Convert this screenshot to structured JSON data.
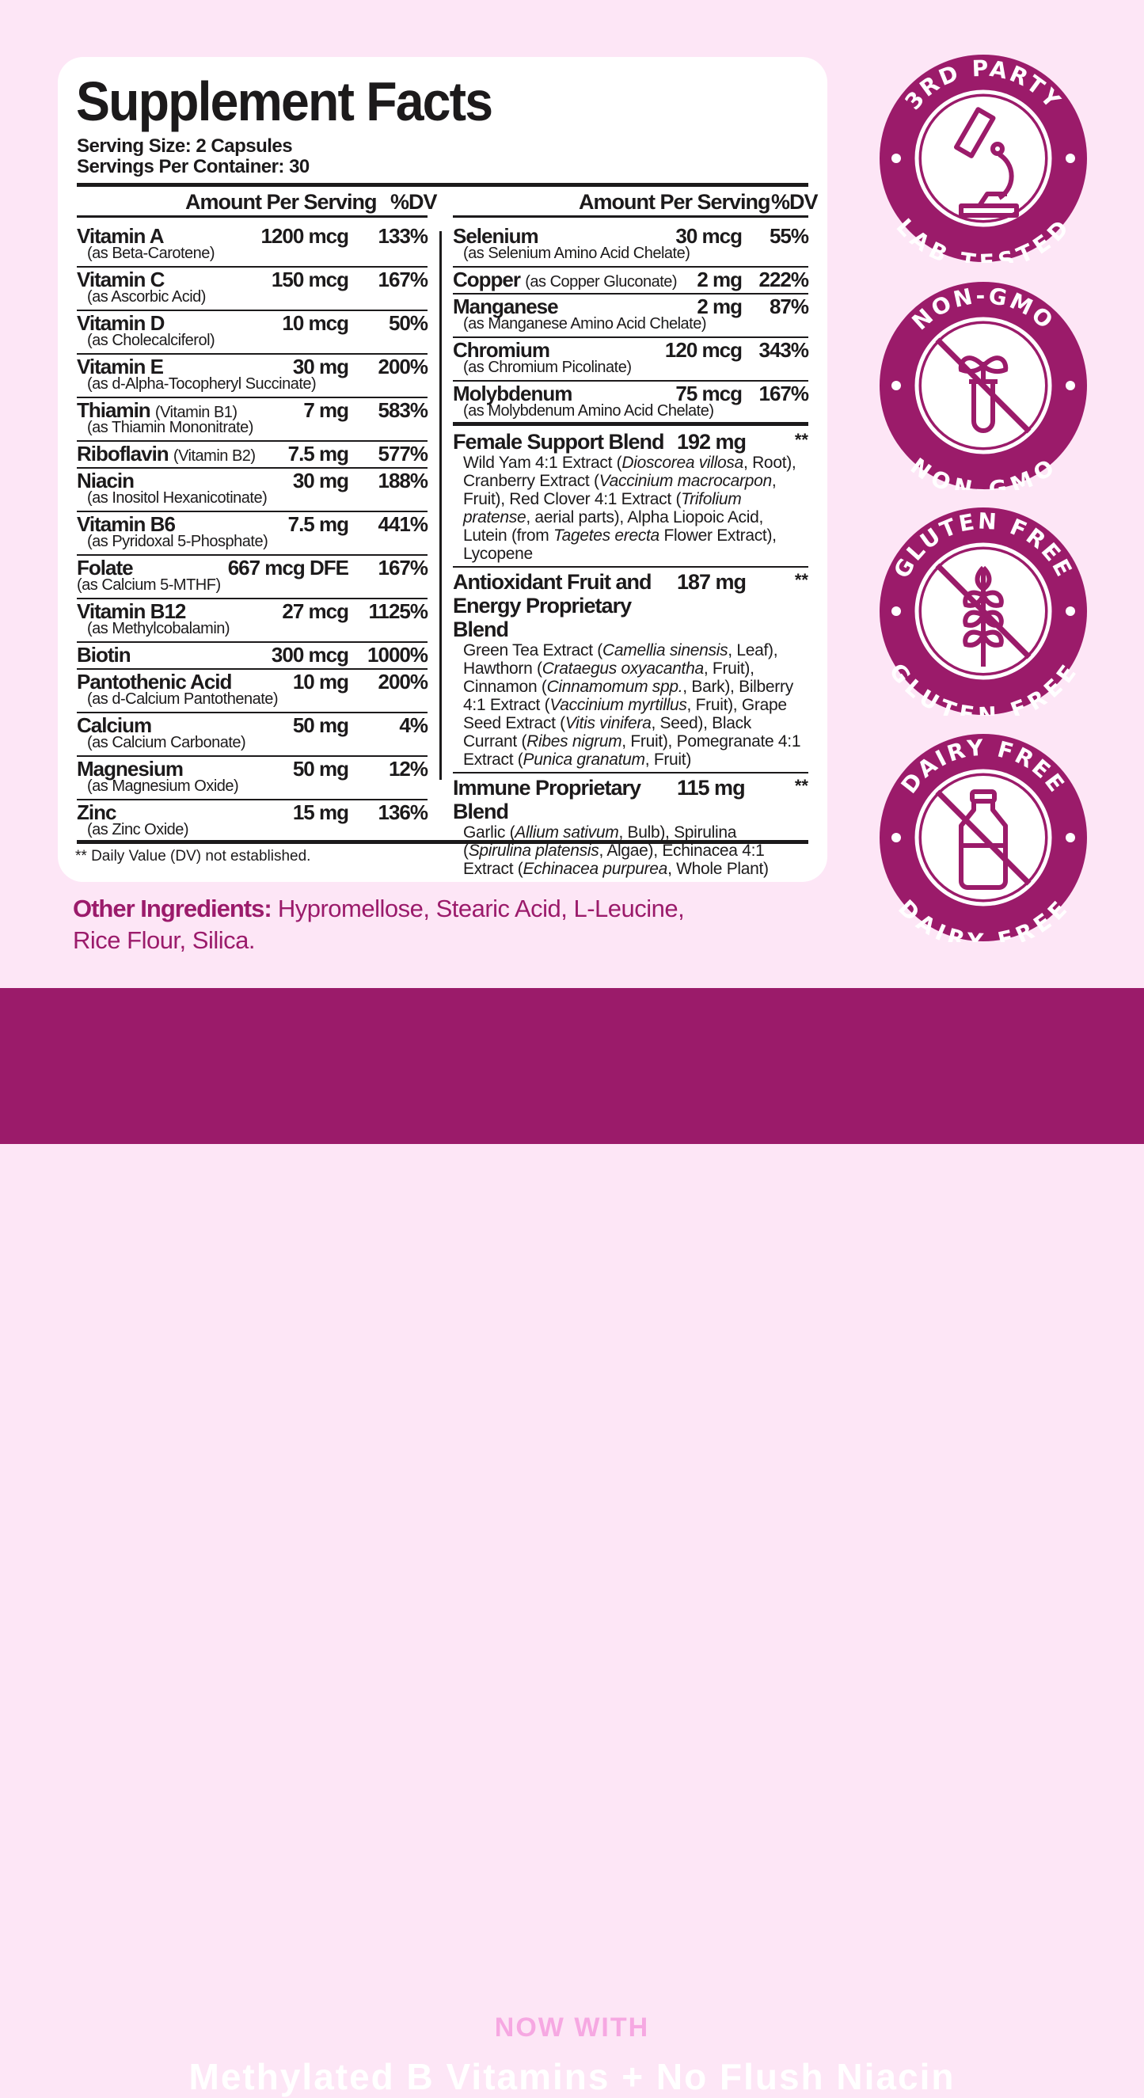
{
  "title": "Supplement Facts",
  "serving_size": "Serving Size: 2 Capsules",
  "servings_per_container": "Servings Per Container: 30",
  "col_amount": "Amount Per Serving",
  "col_dv": "%DV",
  "left_rows": [
    {
      "name": "Vitamin A",
      "sub": "(as Beta-Carotene)",
      "amount": "1200 mcg",
      "dv": "133%"
    },
    {
      "name": "Vitamin C",
      "sub": "(as Ascorbic Acid)",
      "amount": "150 mcg",
      "dv": "167%"
    },
    {
      "name": "Vitamin D",
      "sub": "(as Cholecalciferol)",
      "amount": "10 mcg",
      "dv": "50%"
    },
    {
      "name": "Vitamin E",
      "sub": "(as d-Alpha-Tocopheryl Succinate)",
      "amount": "30 mg",
      "dv": "200%"
    },
    {
      "name": "Thiamin",
      "inline": "(Vitamin B1)",
      "sub": "(as Thiamin Mononitrate)",
      "amount": "7 mg",
      "dv": "583%"
    },
    {
      "name": "Riboflavin",
      "inline": "(Vitamin B2)",
      "amount": "7.5 mg",
      "dv": "577%"
    },
    {
      "name": "Niacin",
      "sub": "(as Inositol Hexanicotinate)",
      "amount": "30 mg",
      "dv": "188%"
    },
    {
      "name": "Vitamin B6",
      "sub": "(as Pyridoxal 5-Phosphate)",
      "amount": "7.5 mg",
      "dv": "441%"
    },
    {
      "name": "Folate",
      "sub": "(as Calcium 5-MTHF)",
      "amount": "667 mcg DFE",
      "dv": "167%"
    },
    {
      "name": "Vitamin B12",
      "sub": "(as Methylcobalamin)",
      "amount": "27 mcg",
      "dv": "1125%"
    },
    {
      "name": "Biotin",
      "amount": "300 mcg",
      "dv": "1000%"
    },
    {
      "name": "Pantothenic Acid",
      "sub": "(as d-Calcium Pantothenate)",
      "amount": "10 mg",
      "dv": "200%"
    },
    {
      "name": "Calcium",
      "sub": "(as Calcium Carbonate)",
      "amount": "50 mg",
      "dv": "4%"
    },
    {
      "name": "Magnesium",
      "sub": "(as Magnesium Oxide)",
      "amount": "50 mg",
      "dv": "12%"
    },
    {
      "name": "Zinc",
      "sub": "(as Zinc Oxide)",
      "amount": "15 mg",
      "dv": "136%"
    }
  ],
  "right_rows": [
    {
      "name": "Selenium",
      "sub": "(as Selenium Amino Acid Chelate)",
      "amount": "30 mcg",
      "dv": "55%"
    },
    {
      "name": "Copper",
      "inline": "(as Copper Gluconate)",
      "amount": "2 mg",
      "dv": "222%"
    },
    {
      "name": "Manganese",
      "sub": "(as Manganese Amino Acid Chelate)",
      "amount": "2 mg",
      "dv": "87%"
    },
    {
      "name": "Chromium",
      "sub": "(as Chromium Picolinate)",
      "amount": "120 mcg",
      "dv": "343%"
    },
    {
      "name": "Molybdenum",
      "sub": "(as Molybdenum Amino Acid Chelate)",
      "amount": "75 mcg",
      "dv": "167%"
    }
  ],
  "blends": [
    {
      "name": "Female Support Blend",
      "amount": "192 mg",
      "dv": "**",
      "desc": [
        {
          "t": "Wild Yam 4:1 Extract ("
        },
        {
          "t": "Dioscorea villosa",
          "i": true
        },
        {
          "t": ", Root), Cranberry Extract ("
        },
        {
          "t": "Vaccinium macrocarpon",
          "i": true
        },
        {
          "t": ", Fruit), Red Clover 4:1 Extract ("
        },
        {
          "t": "Trifolium pratense",
          "i": true
        },
        {
          "t": ", aerial parts), Alpha Liopoic Acid, Lutein (from "
        },
        {
          "t": "Tagetes erecta",
          "i": true
        },
        {
          "t": " Flower Extract), Lycopene"
        }
      ]
    },
    {
      "name": "Antioxidant Fruit and Energy Proprietary Blend",
      "amount": "187 mg",
      "dv": "**",
      "desc": [
        {
          "t": "Green Tea Extract ("
        },
        {
          "t": "Camellia sinensis",
          "i": true
        },
        {
          "t": ", Leaf), Hawthorn ("
        },
        {
          "t": "Crataegus oxyacantha",
          "i": true
        },
        {
          "t": ", Fruit), Cinnamon ("
        },
        {
          "t": "Cinnamomum spp.",
          "i": true
        },
        {
          "t": ", Bark), Bilberry 4:1 Extract ("
        },
        {
          "t": "Vaccinium myrtillus",
          "i": true
        },
        {
          "t": ", Fruit), Grape Seed Extract ("
        },
        {
          "t": "Vitis vinifera",
          "i": true
        },
        {
          "t": ", Seed), Black Currant ("
        },
        {
          "t": "Ribes nigrum",
          "i": true
        },
        {
          "t": ", Fruit), Pomegranate 4:1 Extract ("
        },
        {
          "t": "Punica granatum",
          "i": true
        },
        {
          "t": ", Fruit)"
        }
      ]
    },
    {
      "name": "Immune Proprietary Blend",
      "amount": "115 mg",
      "dv": "**",
      "desc": [
        {
          "t": "Garlic ("
        },
        {
          "t": "Allium sativum",
          "i": true
        },
        {
          "t": ", Bulb), Spirulina ("
        },
        {
          "t": "Spirulina platensis",
          "i": true
        },
        {
          "t": ", Algae), Echinacea 4:1 Extract ("
        },
        {
          "t": "Echinacea purpurea",
          "i": true
        },
        {
          "t": ", Whole Plant)"
        }
      ]
    }
  ],
  "footnote": "** Daily Value (DV) not established.",
  "other_label": "Other Ingredients:",
  "other_text": "Hypromellose, Stearic Acid, L-Leucine, Rice Flour, Silica.",
  "badges": [
    {
      "top": "3RD PARTY",
      "bottom": "LAB TESTED",
      "icon": "microscope-icon"
    },
    {
      "top": "NON-GMO",
      "bottom": "NON-GMO",
      "icon": "no-gmo-plant-icon"
    },
    {
      "top": "GLUTEN FREE",
      "bottom": "GLUTEN FREE",
      "icon": "no-wheat-icon"
    },
    {
      "top": "DAIRY FREE",
      "bottom": "DAIRY FREE",
      "icon": "no-milk-icon"
    }
  ],
  "banner": {
    "kicker": "NOW WITH",
    "headline": "Methylated B Vitamins + No Flush Niacin"
  },
  "colors": {
    "background": "#fde6f6",
    "brand_purple": "#9b1b6a",
    "kicker_pink": "#f6a8e2"
  }
}
